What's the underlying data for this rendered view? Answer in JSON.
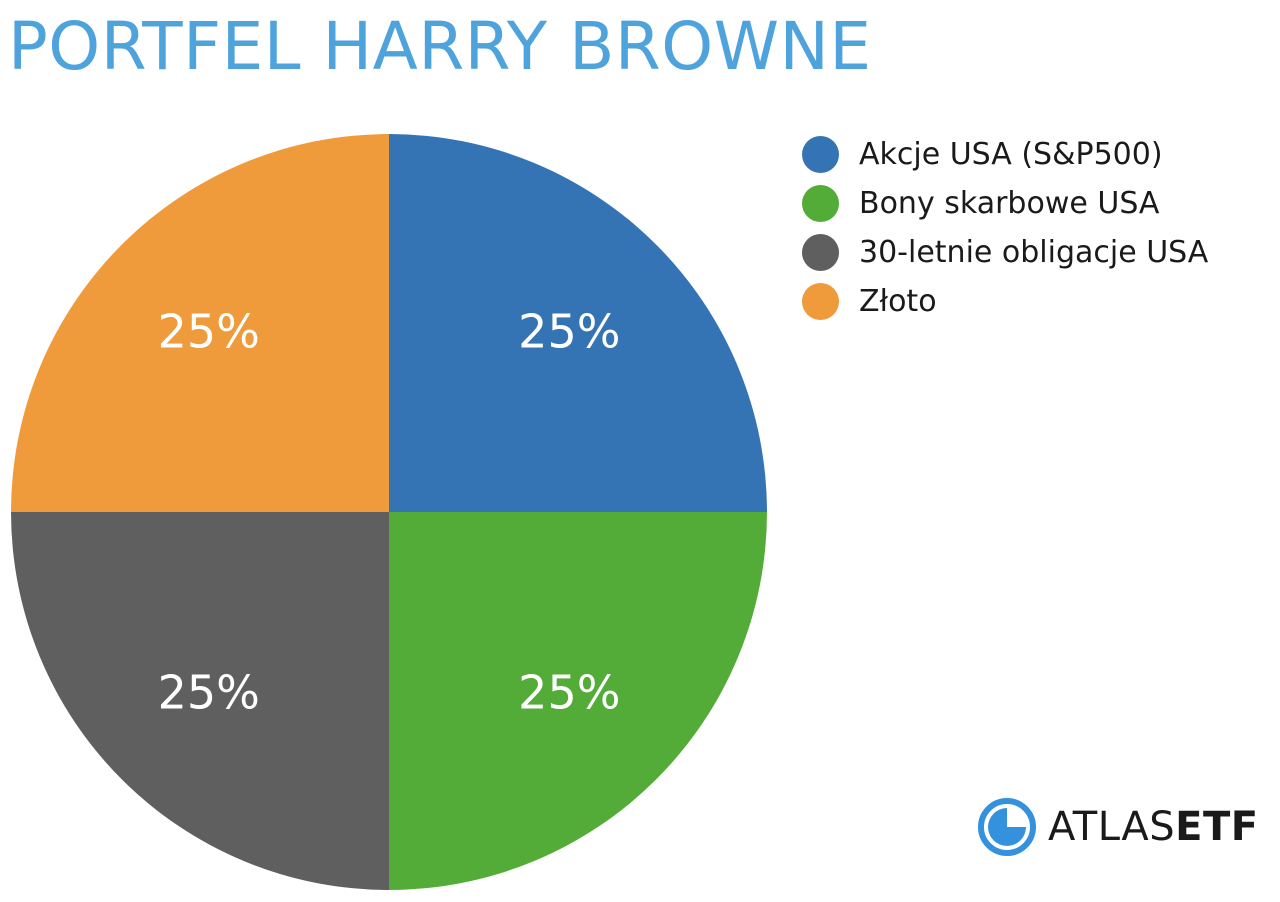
{
  "colors": {
    "title": "#4fa3dc",
    "label_text": "#ffffff",
    "logo_blue": "#3391de"
  },
  "chart_data": {
    "type": "pie",
    "title": "PORTFEL HARRY BROWNE",
    "legend_position": "top-right",
    "slices": [
      {
        "name": "Akcje USA (S&P500)",
        "value": 25,
        "label": "25%",
        "color": "#3574b4"
      },
      {
        "name": "Bony skarbowe USA",
        "value": 25,
        "label": "25%",
        "color": "#53ac37"
      },
      {
        "name": "30-letnie obligacje USA",
        "value": 25,
        "label": "25%",
        "color": "#5f5f5f"
      },
      {
        "name": "Złoto",
        "value": 25,
        "label": "25%",
        "color": "#ef9a3b"
      }
    ]
  },
  "logo": {
    "text_regular": "ATLAS",
    "text_bold": "ETF",
    "icon": "atlas-globe-icon"
  }
}
